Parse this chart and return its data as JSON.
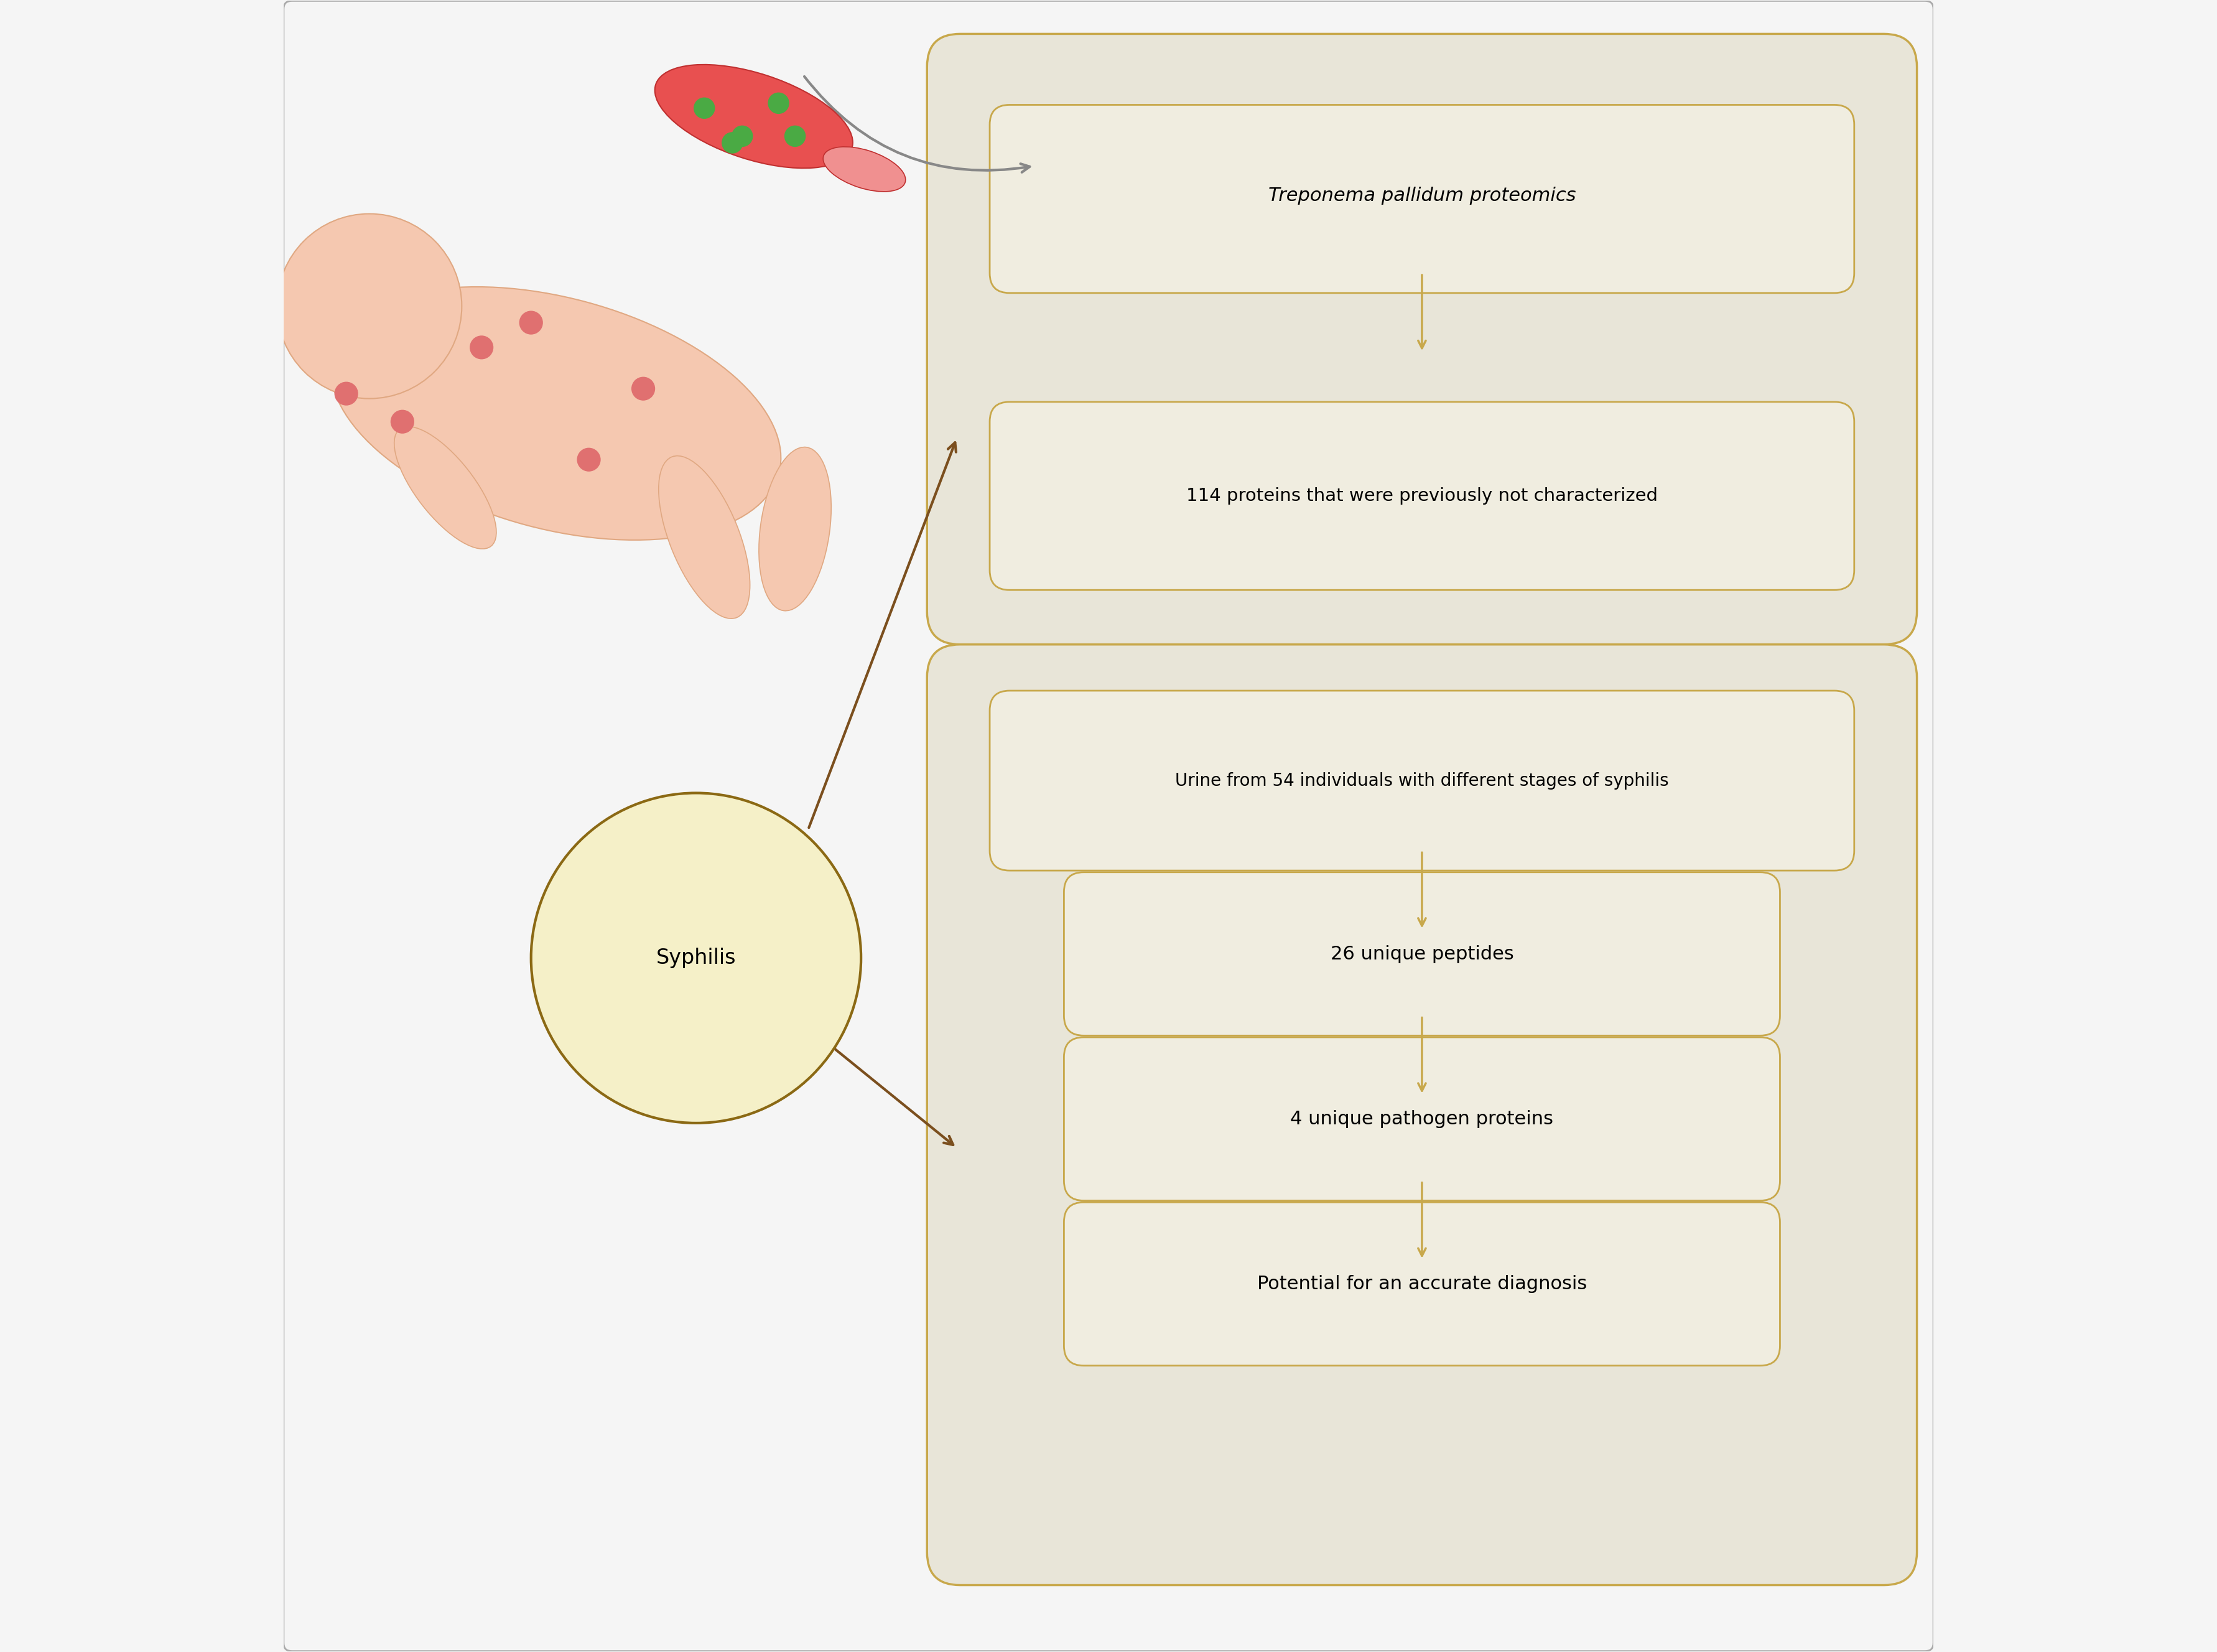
{
  "fig_width": 35.64,
  "fig_height": 26.55,
  "bg_color": "#f5f5f5",
  "border_color": "#aaaaaa",
  "gold_color": "#8B6914",
  "light_gold": "#c8a84b",
  "box_bg": "#f0ede0",
  "large_box_bg": "#e8e5d8",
  "circle_fill": "#f5f0c8",
  "circle_edge": "#8B6914",
  "arrow_brown": "#7B4F1E",
  "arrow_gray": "#888888",
  "title_box1": "Treponema pallidum proteomics",
  "box1_text": "114 proteins that were previously not characterized",
  "box2_top": "Urine from 54 individuals with different stages of syphilis",
  "box2_mid1": "26 unique peptides",
  "box2_mid2": "4 unique pathogen proteins",
  "box2_bot": "Potential for an accurate diagnosis",
  "circle_text": "Syphilis",
  "font_size_main": 22,
  "font_size_circle": 24,
  "font_size_small": 20
}
